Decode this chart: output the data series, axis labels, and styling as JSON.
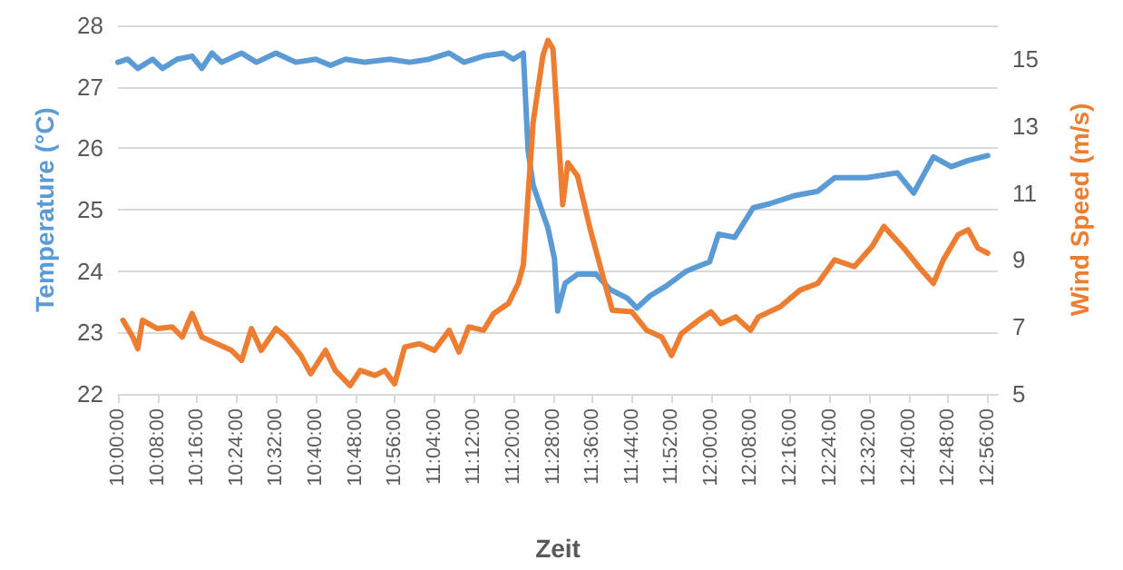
{
  "chart_data": {
    "type": "line",
    "xlabel": "Zeit",
    "ylabel": "Temperature (°C)",
    "y2label": "Wind Speed (m/s)",
    "xlim": [
      10,
      12.967
    ],
    "xticks": [
      {
        "value": 10,
        "label": "10:00:00"
      },
      {
        "value": 10.1333,
        "label": "10:08:00"
      },
      {
        "value": 10.2667,
        "label": "10:16:00"
      },
      {
        "value": 10.4,
        "label": "10:24:00"
      },
      {
        "value": 10.5333,
        "label": "10:32:00"
      },
      {
        "value": 10.6667,
        "label": "10:40:00"
      },
      {
        "value": 10.8,
        "label": "10:48:00"
      },
      {
        "value": 10.9333,
        "label": "10:56:00"
      },
      {
        "value": 11.0667,
        "label": "11:04:00"
      },
      {
        "value": 11.2,
        "label": "11:12:00"
      },
      {
        "value": 11.3333,
        "label": "11:20:00"
      },
      {
        "value": 11.4667,
        "label": "11:28:00"
      },
      {
        "value": 11.6,
        "label": "11:36:00"
      },
      {
        "value": 11.7333,
        "label": "11:44:00"
      },
      {
        "value": 11.8667,
        "label": "11:52:00"
      },
      {
        "value": 12,
        "label": "12:00:00"
      },
      {
        "value": 12.1333,
        "label": "12:08:00"
      },
      {
        "value": 12.2667,
        "label": "12:16:00"
      },
      {
        "value": 12.4,
        "label": "12:24:00"
      },
      {
        "value": 12.5333,
        "label": "12:32:00"
      },
      {
        "value": 12.6667,
        "label": "12:40:00"
      },
      {
        "value": 12.8,
        "label": "12:48:00"
      },
      {
        "value": 12.9333,
        "label": "12:56:00"
      }
    ],
    "ylim": [
      22,
      28
    ],
    "yticks": [
      22,
      23,
      24,
      25,
      26,
      27,
      28
    ],
    "y2lim": [
      5,
      16
    ],
    "y2ticks": [
      5,
      7,
      9,
      11,
      13,
      15
    ],
    "grid": "y",
    "marker": "none",
    "line_style": "solid",
    "series": [
      {
        "color": "#5b9bd5",
        "x": [
          10,
          10.033,
          10.067,
          10.117,
          10.15,
          10.2,
          10.25,
          10.283,
          10.317,
          10.35,
          10.417,
          10.467,
          10.533,
          10.6,
          10.667,
          10.717,
          10.767,
          10.833,
          10.917,
          10.983,
          11.05,
          11.117,
          11.167,
          11.233,
          11.3,
          11.333,
          11.367,
          11.383,
          11.4,
          11.45,
          11.472,
          11.483,
          11.508,
          11.55,
          11.612,
          11.66,
          11.717,
          11.75,
          11.795,
          11.85,
          11.917,
          11.995,
          12.025,
          12.08,
          12.142,
          12.2,
          12.283,
          12.36,
          12.417,
          12.525,
          12.628,
          12.683,
          12.75,
          12.81,
          12.867,
          12.933
        ],
        "values": [
          27.4,
          27.45,
          27.3,
          27.45,
          27.3,
          27.45,
          27.5,
          27.3,
          27.55,
          27.4,
          27.55,
          27.4,
          27.55,
          27.4,
          27.45,
          27.35,
          27.45,
          27.4,
          27.45,
          27.4,
          27.45,
          27.55,
          27.4,
          27.5,
          27.55,
          27.45,
          27.55,
          25.97,
          25.4,
          24.7,
          24.2,
          23.35,
          23.8,
          23.95,
          23.95,
          23.7,
          23.56,
          23.4,
          23.6,
          23.76,
          24.0,
          24.15,
          24.6,
          24.55,
          25.03,
          25.1,
          25.23,
          25.3,
          25.52,
          25.52,
          25.6,
          25.27,
          25.86,
          25.7,
          25.8,
          25.88
        ]
      },
      {
        "color": "#ed7d31",
        "axis": "y2",
        "x": [
          10.017,
          10.05,
          10.067,
          10.083,
          10.133,
          10.183,
          10.217,
          10.25,
          10.283,
          10.333,
          10.383,
          10.417,
          10.45,
          10.483,
          10.533,
          10.567,
          10.617,
          10.65,
          10.7,
          10.733,
          10.783,
          10.817,
          10.867,
          10.9,
          10.933,
          10.967,
          11.017,
          11.067,
          11.117,
          11.15,
          11.183,
          11.233,
          11.267,
          11.317,
          11.35,
          11.367,
          11.4,
          11.433,
          11.45,
          11.467,
          11.5,
          11.517,
          11.55,
          11.593,
          11.642,
          11.667,
          11.733,
          11.783,
          11.833,
          11.867,
          11.9,
          11.958,
          12,
          12.033,
          12.083,
          12.133,
          12.16,
          12.233,
          12.3,
          12.36,
          12.417,
          12.483,
          12.543,
          12.583,
          12.65,
          12.7,
          12.75,
          12.783,
          12.833,
          12.867,
          12.9,
          12.933
        ],
        "values": [
          7.2,
          6.7,
          6.35,
          7.2,
          6.95,
          7.0,
          6.7,
          7.4,
          6.7,
          6.5,
          6.3,
          6.0,
          6.95,
          6.3,
          6.95,
          6.7,
          6.15,
          5.6,
          6.3,
          5.7,
          5.25,
          5.7,
          5.55,
          5.7,
          5.3,
          6.4,
          6.5,
          6.3,
          6.9,
          6.25,
          7.0,
          6.9,
          7.4,
          7.7,
          8.3,
          8.85,
          13.1,
          15.1,
          15.55,
          15.3,
          10.65,
          11.9,
          11.5,
          9.9,
          8.3,
          7.5,
          7.45,
          6.9,
          6.7,
          6.15,
          6.8,
          7.2,
          7.45,
          7.1,
          7.3,
          6.9,
          7.3,
          7.6,
          8.1,
          8.3,
          9.0,
          8.8,
          9.4,
          10.0,
          9.35,
          8.8,
          8.3,
          9.0,
          9.75,
          9.9,
          9.35,
          9.2
        ]
      }
    ]
  }
}
